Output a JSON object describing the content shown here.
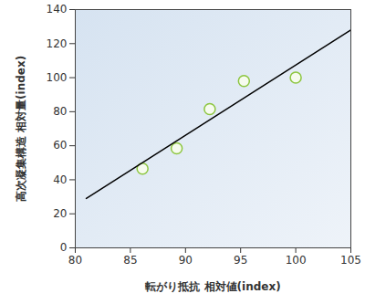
{
  "chart_data": {
    "type": "scatter",
    "x_label": "転がり抵抗 相対値(index)",
    "y_label": "高次凝集構造 相対量(index)",
    "series": [
      {
        "type": "scatter",
        "marker": "circle",
        "color": "#8dc63f",
        "x": [
          86.1,
          89.2,
          92.2,
          95.3,
          100.0
        ],
        "values": [
          46.5,
          58.5,
          81.5,
          98.0,
          100.0
        ]
      },
      {
        "type": "line",
        "line_style": "solid",
        "color": "#000000",
        "x": [
          81,
          105
        ],
        "values": [
          29,
          128
        ]
      }
    ],
    "xlim": [
      80,
      105
    ],
    "xticks": [
      80,
      85,
      90,
      95,
      100,
      105
    ],
    "ylim": [
      0,
      140
    ],
    "yticks": [
      0,
      20,
      40,
      60,
      80,
      100,
      120,
      140
    ],
    "grid": false
  }
}
